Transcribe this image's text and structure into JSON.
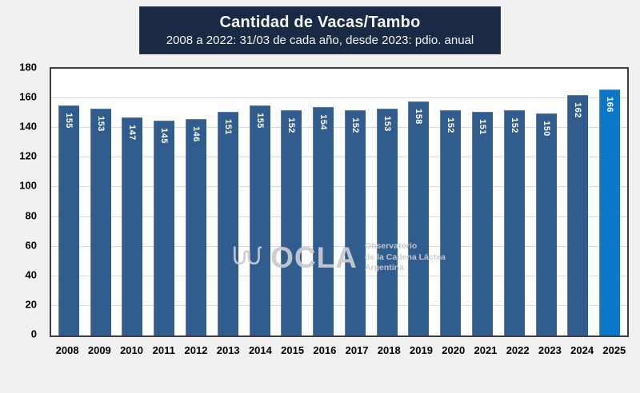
{
  "title_box": {
    "title": "Cantidad de Vacas/Tambo",
    "subtitle": "2008 a 2022: 31/03 de cada año, desde 2023: pdio. anual"
  },
  "watermark": {
    "brand": "OCLA",
    "org_line1": "Observatorio",
    "org_line2": "de la Cadena Láctea",
    "org_line3": "Argentina",
    "icon": "wave-squiggle-icon"
  },
  "colors": {
    "background": "#F1F1F1",
    "title_bg": "#1B2A44",
    "bar": "#305C8E",
    "bar_highlight": "#0C77C8",
    "gridline": "#D9D9D9",
    "plot_border": "#3F3F3F",
    "bar_label": "#FFFFFF",
    "watermark": "#C9CDD2"
  },
  "chart_data": {
    "type": "bar",
    "title": "Cantidad de Vacas/Tambo",
    "subtitle": "2008 a 2022: 31/03 de cada año, desde 2023: pdio. anual",
    "categories": [
      "2008",
      "2009",
      "2010",
      "2011",
      "2012",
      "2013",
      "2014",
      "2015",
      "2016",
      "2017",
      "2018",
      "2019",
      "2020",
      "2021",
      "2022",
      "2023",
      "2024",
      "2025"
    ],
    "values": [
      155,
      153,
      147,
      145,
      146,
      151,
      155,
      152,
      154,
      152,
      153,
      158,
      152,
      151,
      152,
      150,
      162,
      166
    ],
    "highlight_index": 17,
    "xlabel": "",
    "ylabel": "",
    "ylim": [
      0,
      180
    ],
    "yticks": [
      0,
      20,
      40,
      60,
      80,
      100,
      120,
      140,
      160,
      180
    ],
    "grid": true,
    "legend": false,
    "data_labels": "inside-top, rotated 90deg, white bold"
  }
}
